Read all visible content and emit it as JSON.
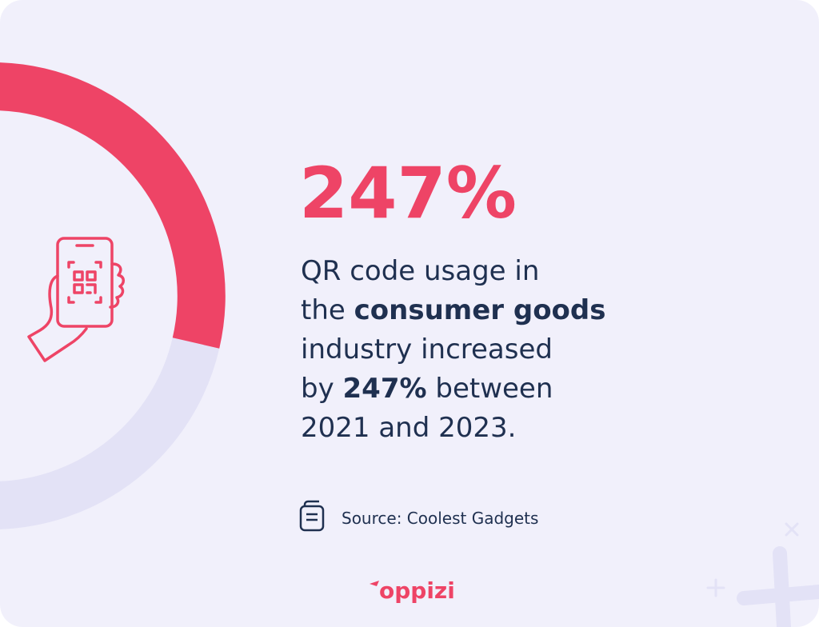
{
  "headline": "247%",
  "body": {
    "lines": [
      [
        {
          "text": "QR code usage in",
          "bold": false
        }
      ],
      [
        {
          "text": "the ",
          "bold": false
        },
        {
          "text": "consumer goods",
          "bold": true
        }
      ],
      [
        {
          "text": "industry increased",
          "bold": false
        }
      ],
      [
        {
          "text": "by ",
          "bold": false
        },
        {
          "text": "247%",
          "bold": true
        },
        {
          "text": " between",
          "bold": false
        }
      ],
      [
        {
          "text": "2021 and 2023.",
          "bold": false
        }
      ]
    ]
  },
  "source": "Source: Coolest Gadgets",
  "logo": "oppizi"
}
